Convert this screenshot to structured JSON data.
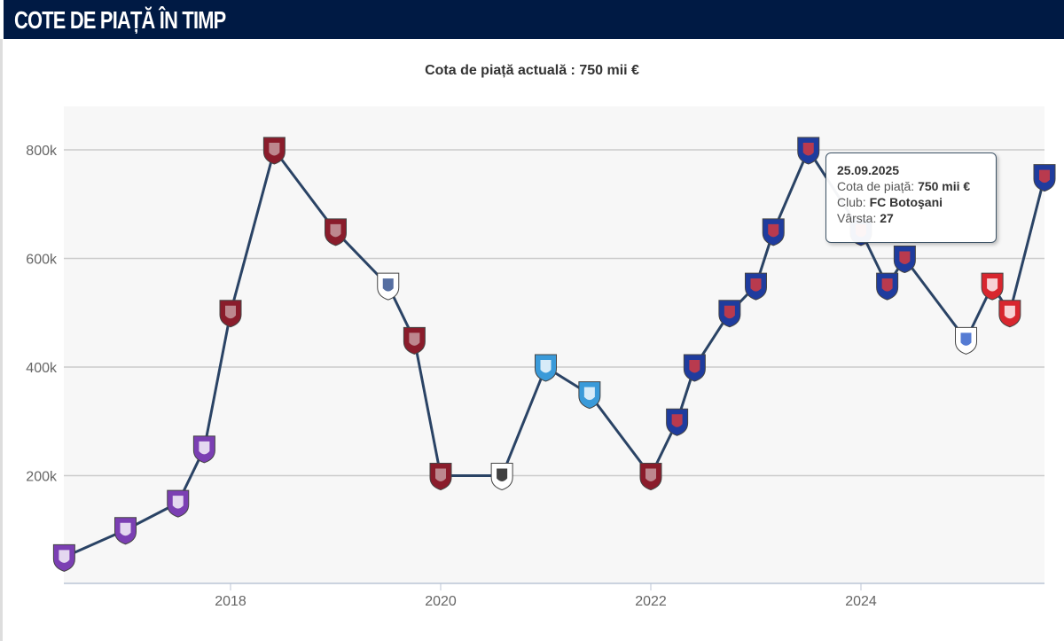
{
  "header": {
    "title": "COTE DE PIAȚĂ ÎN TIMP"
  },
  "subtitle": "Cota de piață actuală : 750 mii €",
  "tooltip": {
    "date": "25.09.2025",
    "value_label": "Cota de piață:",
    "value": "750 mii €",
    "club_label": "Club:",
    "club": "FC Botoşani",
    "age_label": "Vârsta:",
    "age": "27"
  },
  "colors": {
    "line": "#2a4365",
    "header": "#001a44",
    "plot_bg": "#f7f7f7",
    "grid": "#cccccc"
  },
  "chart_data": {
    "type": "line",
    "title": "",
    "xlabel": "",
    "ylabel": "",
    "x_ticks": [
      "2018",
      "2020",
      "2022",
      "2024"
    ],
    "y_ticks": [
      "200k",
      "400k",
      "600k",
      "800k"
    ],
    "ylim": [
      0,
      880000
    ],
    "xlim": [
      "2016-06",
      "2025-10"
    ],
    "grid": true,
    "points": [
      {
        "date": "2016-06",
        "value": 50000,
        "badge": "violet"
      },
      {
        "date": "2017-01",
        "value": 100000,
        "badge": "violet"
      },
      {
        "date": "2017-07",
        "value": 150000,
        "badge": "violet"
      },
      {
        "date": "2017-10",
        "value": 250000,
        "badge": "violet"
      },
      {
        "date": "2018-01",
        "value": 500000,
        "badge": "maroon"
      },
      {
        "date": "2018-06",
        "value": 800000,
        "badge": "maroon"
      },
      {
        "date": "2019-01",
        "value": 650000,
        "badge": "maroon"
      },
      {
        "date": "2019-07",
        "value": 550000,
        "badge": "white-blue"
      },
      {
        "date": "2019-10",
        "value": 450000,
        "badge": "maroon"
      },
      {
        "date": "2020-01",
        "value": 200000,
        "badge": "maroon"
      },
      {
        "date": "2020-08",
        "value": 200000,
        "badge": "black-white"
      },
      {
        "date": "2021-01",
        "value": 400000,
        "badge": "light-blue"
      },
      {
        "date": "2021-06",
        "value": 350000,
        "badge": "light-blue"
      },
      {
        "date": "2022-01",
        "value": 200000,
        "badge": "maroon"
      },
      {
        "date": "2022-04",
        "value": 300000,
        "badge": "blue-red"
      },
      {
        "date": "2022-06",
        "value": 400000,
        "badge": "blue-red"
      },
      {
        "date": "2022-10",
        "value": 500000,
        "badge": "blue-red"
      },
      {
        "date": "2023-01",
        "value": 550000,
        "badge": "blue-red"
      },
      {
        "date": "2023-03",
        "value": 650000,
        "badge": "blue-red"
      },
      {
        "date": "2023-07",
        "value": 800000,
        "badge": "blue-red"
      },
      {
        "date": "2024-01",
        "value": 650000,
        "badge": "blue-red"
      },
      {
        "date": "2024-04",
        "value": 550000,
        "badge": "blue-red"
      },
      {
        "date": "2024-06",
        "value": 600000,
        "badge": "blue-red"
      },
      {
        "date": "2025-01",
        "value": 450000,
        "badge": "tricolor"
      },
      {
        "date": "2025-04",
        "value": 550000,
        "badge": "red-white"
      },
      {
        "date": "2025-06",
        "value": 500000,
        "badge": "red-white"
      },
      {
        "date": "2025-09",
        "value": 750000,
        "badge": "blue-red"
      }
    ]
  },
  "badge_colors": {
    "violet": [
      "#7b3fb3",
      "#ffffff"
    ],
    "maroon": [
      "#8a1c2b",
      "#c9a3a8"
    ],
    "white-blue": [
      "#ffffff",
      "#2a4a8a"
    ],
    "black-white": [
      "#ffffff",
      "#111111"
    ],
    "light-blue": [
      "#3a9ad9",
      "#ffffff"
    ],
    "blue-red": [
      "#1f3c9e",
      "#e03a3a"
    ],
    "tricolor": [
      "#ffffff",
      "#2a5ac8"
    ],
    "red-white": [
      "#d8262e",
      "#ffffff"
    ]
  }
}
